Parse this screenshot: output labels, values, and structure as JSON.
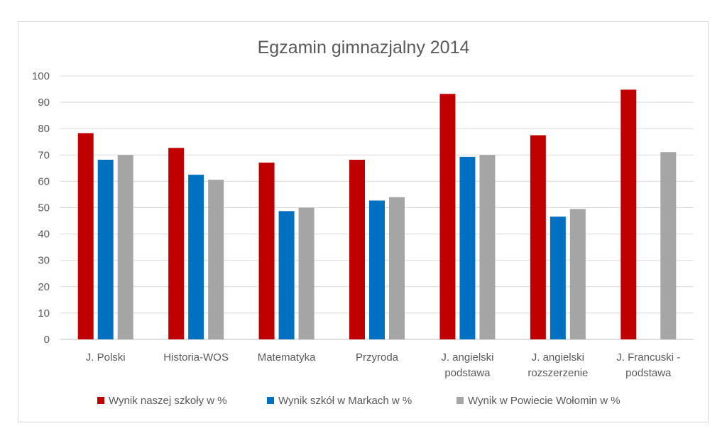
{
  "chart_data": {
    "type": "bar",
    "title": "Egzamin gimnazjalny 2014",
    "xlabel": "",
    "ylabel": "",
    "ylim": [
      0,
      100
    ],
    "yticks": [
      0,
      10,
      20,
      30,
      40,
      50,
      60,
      70,
      80,
      90,
      100
    ],
    "grid": true,
    "legend_position": "bottom",
    "categories": [
      [
        "J. Polski"
      ],
      [
        "Historia-WOS"
      ],
      [
        "Matematyka"
      ],
      [
        "Przyroda"
      ],
      [
        "J. angielski",
        "podstawa"
      ],
      [
        "J. angielski",
        "rozszerzenie"
      ],
      [
        "J. Francuski -",
        "podstawa"
      ]
    ],
    "series": [
      {
        "name": "Wynik naszej szkoły w %",
        "color": "#c00000",
        "values": [
          78.3,
          72.7,
          67.1,
          68.2,
          93.2,
          77.5,
          94.8
        ]
      },
      {
        "name": "Wynik szkół w Markach w %",
        "color": "#0070c0",
        "values": [
          68.2,
          62.5,
          48.7,
          52.7,
          69.3,
          46.6,
          null
        ]
      },
      {
        "name": "Wynik w Powiecie Wołomin w %",
        "color": "#a5a5a5",
        "values": [
          70.0,
          60.6,
          50.0,
          54.0,
          70.0,
          49.5,
          71.1
        ]
      }
    ]
  }
}
